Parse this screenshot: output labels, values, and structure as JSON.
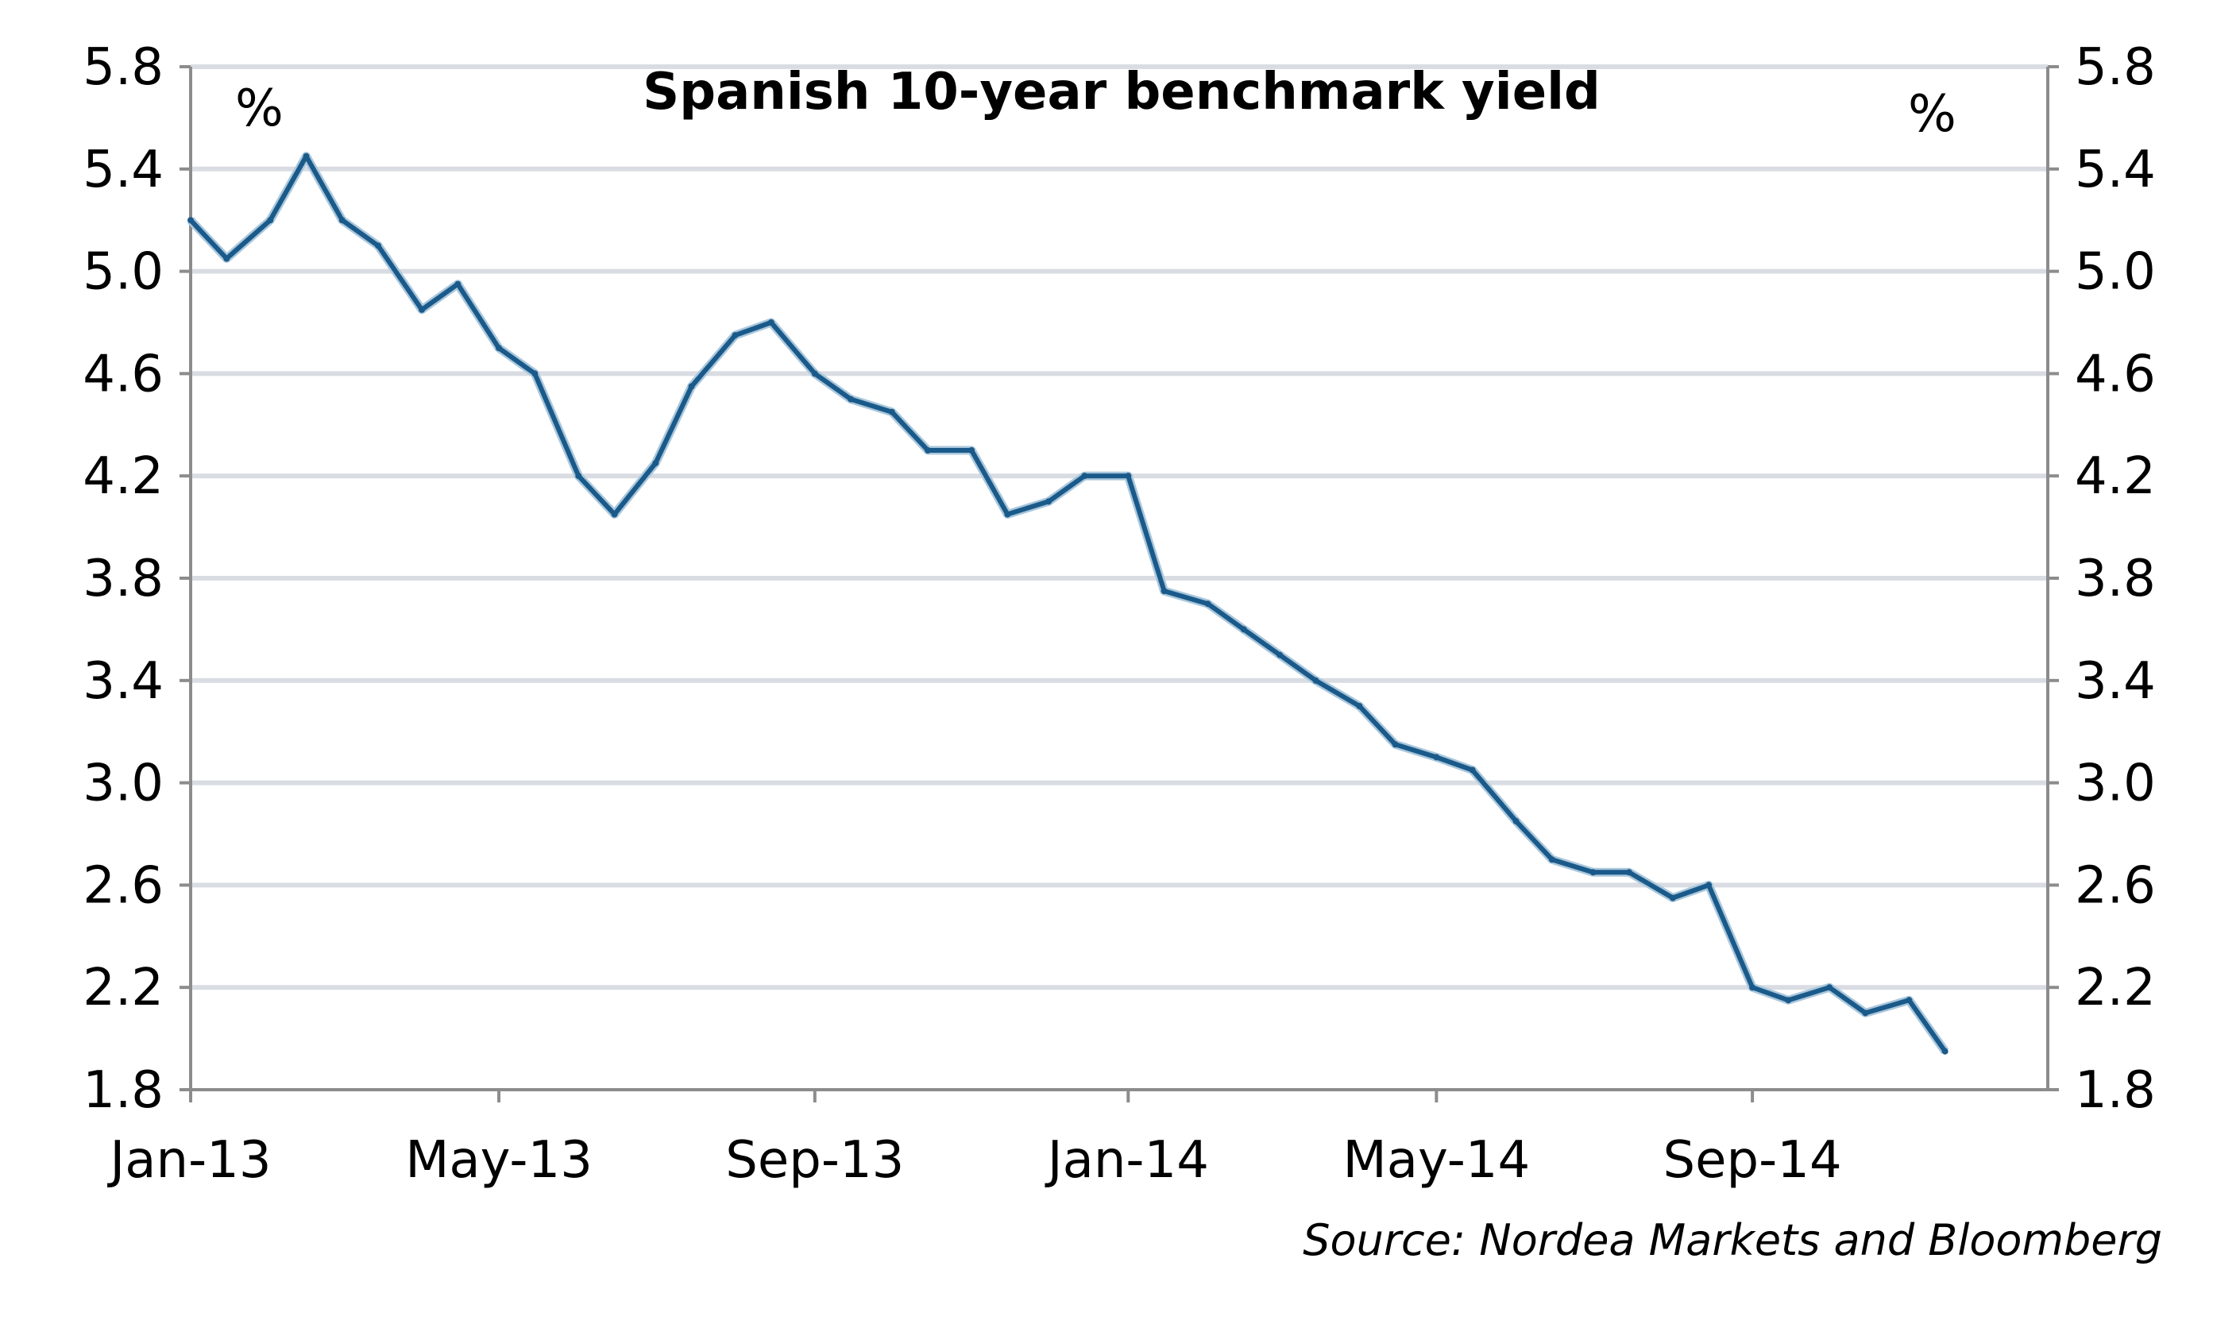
{
  "chart_data": {
    "type": "line",
    "title": "Spanish 10-year benchmark yield",
    "left_unit": "%",
    "right_unit": "%",
    "source": "Source: Nordea Markets and Bloomberg",
    "ylim": [
      1.8,
      5.8
    ],
    "yticks": [
      "5.8",
      "5.4",
      "5.0",
      "4.6",
      "4.2",
      "3.8",
      "3.4",
      "3.0",
      "2.6",
      "2.2",
      "1.8"
    ],
    "xticks": [
      "Jan-13",
      "May-13",
      "Sep-13",
      "Jan-14",
      "May-14",
      "Sep-14"
    ],
    "grid": true,
    "colors": {
      "line": "#1a5a8a",
      "line_light": "#aac7dc",
      "grid": "#d9dde3",
      "axis": "#8c8c8c"
    },
    "series": [
      {
        "name": "Spanish 10-year benchmark yield",
        "x": [
          "2013-01-01",
          "2013-01-15",
          "2013-02-01",
          "2013-02-15",
          "2013-03-01",
          "2013-03-15",
          "2013-04-01",
          "2013-04-15",
          "2013-05-01",
          "2013-05-15",
          "2013-06-01",
          "2013-06-15",
          "2013-07-01",
          "2013-07-15",
          "2013-08-01",
          "2013-08-15",
          "2013-09-01",
          "2013-09-15",
          "2013-10-01",
          "2013-10-15",
          "2013-11-01",
          "2013-11-15",
          "2013-12-01",
          "2013-12-15",
          "2014-01-01",
          "2014-01-15",
          "2014-02-01",
          "2014-02-15",
          "2014-03-01",
          "2014-03-15",
          "2014-04-01",
          "2014-04-15",
          "2014-05-01",
          "2014-05-15",
          "2014-06-01",
          "2014-06-15",
          "2014-07-01",
          "2014-07-15",
          "2014-08-01",
          "2014-08-15",
          "2014-09-01",
          "2014-09-15",
          "2014-10-01",
          "2014-10-15",
          "2014-11-01",
          "2014-11-15"
        ],
        "values": [
          5.2,
          5.05,
          5.2,
          5.45,
          5.2,
          5.1,
          4.85,
          4.95,
          4.7,
          4.6,
          4.2,
          4.05,
          4.25,
          4.55,
          4.75,
          4.8,
          4.6,
          4.5,
          4.45,
          4.3,
          4.3,
          4.05,
          4.1,
          4.2,
          4.2,
          3.75,
          3.7,
          3.6,
          3.5,
          3.4,
          3.3,
          3.15,
          3.1,
          3.05,
          2.85,
          2.7,
          2.65,
          2.65,
          2.55,
          2.6,
          2.2,
          2.15,
          2.2,
          2.1,
          2.15,
          1.95
        ]
      }
    ]
  }
}
